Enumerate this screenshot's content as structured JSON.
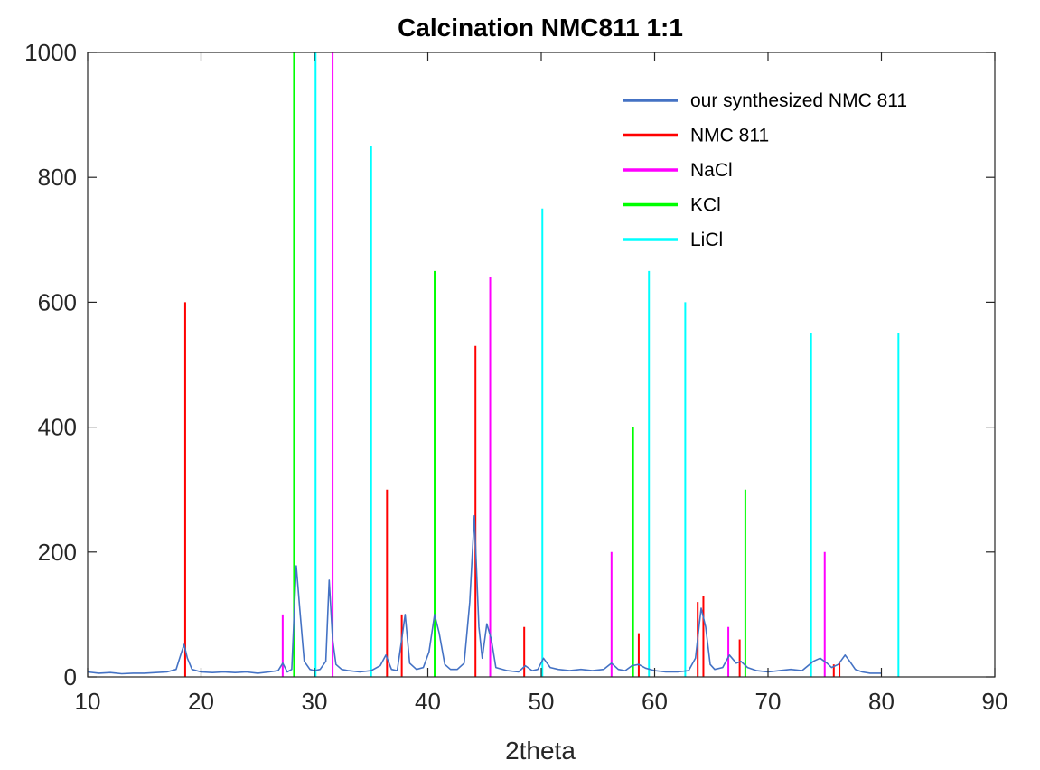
{
  "chart_data": {
    "type": "line",
    "title": "Calcination NMC811 1:1",
    "xlabel": "2theta",
    "ylabel": "",
    "xlim": [
      10,
      90
    ],
    "ylim": [
      0,
      1000
    ],
    "xticks": [
      10,
      20,
      30,
      40,
      50,
      60,
      70,
      80,
      90
    ],
    "yticks": [
      0,
      200,
      400,
      600,
      800,
      1000
    ],
    "grid": false,
    "legend_position": "top-right",
    "series": [
      {
        "name": "our synthesized NMC 811",
        "kind": "line",
        "color": "#4472C4",
        "x": [
          10,
          11,
          12,
          13,
          14,
          15,
          16,
          17,
          17.8,
          18.2,
          18.5,
          18.8,
          19.2,
          20,
          21,
          22,
          23,
          24,
          25,
          26,
          26.8,
          27.2,
          27.6,
          28,
          28.4,
          28.7,
          29.1,
          29.6,
          30,
          30.5,
          31,
          31.3,
          31.6,
          31.9,
          32.4,
          33,
          34,
          35,
          35.8,
          36.3,
          36.8,
          37.3,
          37.7,
          38,
          38.4,
          39,
          39.6,
          40.1,
          40.6,
          41,
          41.5,
          42,
          42.6,
          43.2,
          43.7,
          44.1,
          44.5,
          44.8,
          45.2,
          45.6,
          46,
          47,
          48,
          48.6,
          49.2,
          49.7,
          50.2,
          50.8,
          51.5,
          52.5,
          53.5,
          54.5,
          55.5,
          56.2,
          56.8,
          57.4,
          58,
          58.6,
          59.2,
          60,
          61,
          62,
          63,
          63.6,
          64.1,
          64.5,
          64.9,
          65.3,
          66,
          66.6,
          67.2,
          67.6,
          68.2,
          69,
          70,
          71,
          72,
          73,
          74,
          74.6,
          75.2,
          75.6,
          76.2,
          76.8,
          77.2,
          77.7,
          78.3,
          79,
          80
        ],
        "y": [
          8,
          6,
          7,
          5,
          6,
          6,
          7,
          8,
          12,
          35,
          52,
          30,
          12,
          8,
          7,
          8,
          7,
          8,
          6,
          8,
          10,
          22,
          8,
          12,
          178,
          110,
          25,
          12,
          10,
          12,
          25,
          155,
          60,
          20,
          12,
          10,
          8,
          10,
          18,
          35,
          12,
          10,
          60,
          100,
          22,
          12,
          15,
          40,
          100,
          70,
          20,
          12,
          12,
          22,
          120,
          258,
          80,
          30,
          85,
          60,
          15,
          10,
          8,
          18,
          10,
          12,
          30,
          15,
          12,
          10,
          12,
          10,
          12,
          22,
          12,
          10,
          18,
          20,
          14,
          10,
          8,
          8,
          10,
          30,
          110,
          80,
          20,
          12,
          15,
          35,
          22,
          25,
          15,
          10,
          8,
          10,
          12,
          10,
          25,
          30,
          22,
          15,
          20,
          35,
          25,
          12,
          8,
          6,
          6
        ]
      },
      {
        "name": "NMC 811",
        "kind": "stick",
        "color": "#FF0000",
        "x": [
          18.6,
          36.4,
          37.7,
          44.2,
          48.5,
          58.6,
          63.8,
          64.3,
          67.5,
          75.8,
          76.3
        ],
        "y": [
          600,
          300,
          100,
          530,
          80,
          70,
          120,
          130,
          60,
          20,
          25
        ]
      },
      {
        "name": "NaCl",
        "kind": "stick",
        "color": "#FF00FF",
        "x": [
          27.2,
          31.6,
          45.5,
          56.2,
          66.5,
          75.0
        ],
        "y": [
          100,
          1000,
          640,
          200,
          80,
          200
        ]
      },
      {
        "name": "KCl",
        "kind": "stick",
        "color": "#00FF00",
        "x": [
          28.2,
          40.6,
          58.1,
          68.0
        ],
        "y": [
          1000,
          650,
          400,
          300
        ]
      },
      {
        "name": "LiCl",
        "kind": "stick",
        "color": "#00FFFF",
        "x": [
          30.1,
          35.0,
          50.1,
          59.5,
          62.7,
          73.8,
          81.5
        ],
        "y": [
          1000,
          850,
          750,
          650,
          600,
          550,
          550
        ]
      }
    ]
  }
}
